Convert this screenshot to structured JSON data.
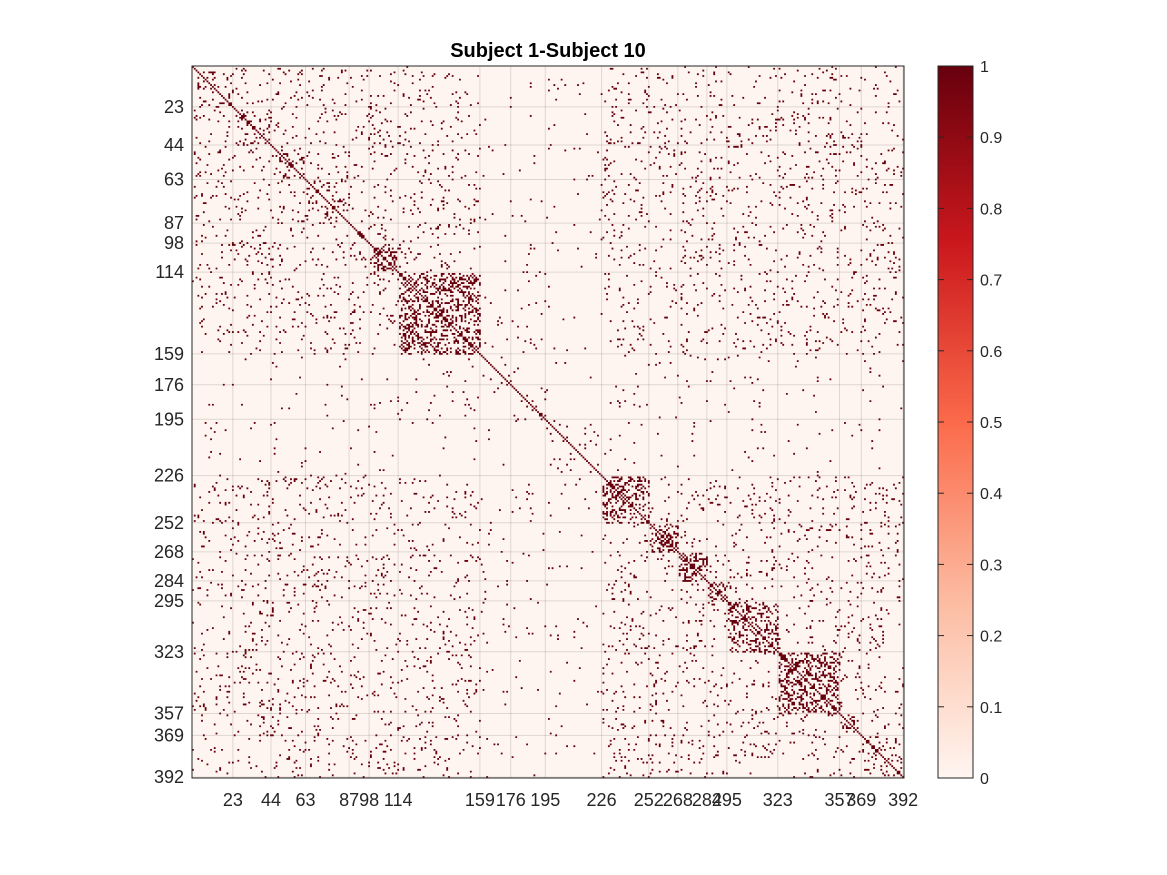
{
  "chart_data": {
    "type": "heatmap",
    "title": "Subject 1-Subject 10",
    "n": 392,
    "ticks": [
      23,
      44,
      63,
      87,
      98,
      114,
      159,
      176,
      195,
      226,
      252,
      268,
      284,
      295,
      323,
      357,
      369,
      392
    ],
    "colorbar": {
      "min": 0,
      "max": 1,
      "ticks": [
        0,
        0.1,
        0.2,
        0.3,
        0.4,
        0.5,
        0.6,
        0.7,
        0.8,
        0.9,
        1
      ],
      "colors": [
        "#fff5f0",
        "#fcbba1",
        "#fb6a4a",
        "#cb181d",
        "#67000d"
      ]
    },
    "grid": true,
    "note_values": "binary matrix (0 or 1); dense blocks near 87–159, 226–295, 323–369 along diagonal"
  }
}
